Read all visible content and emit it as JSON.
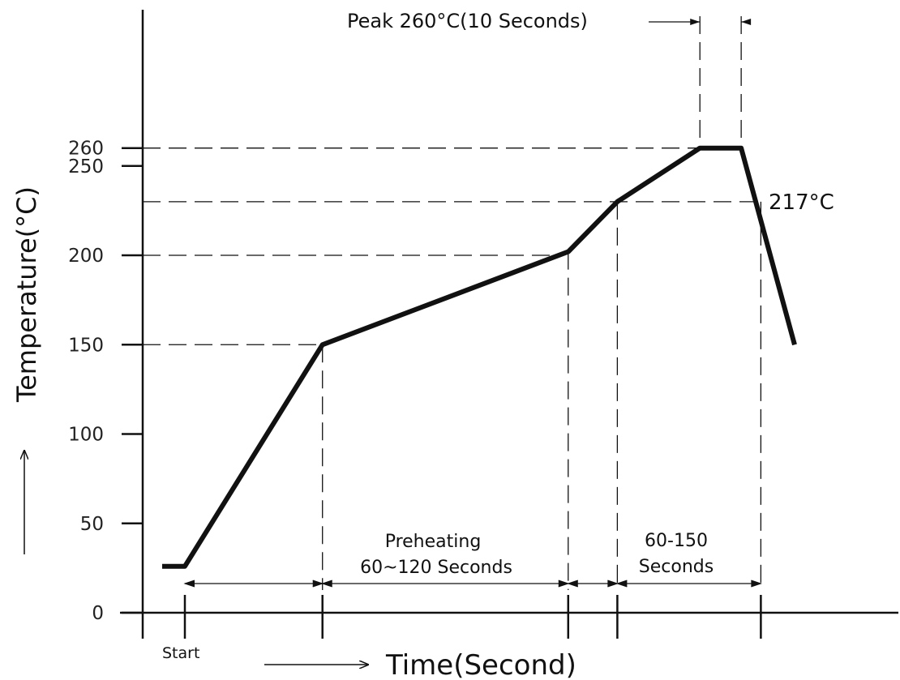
{
  "chart_data": {
    "type": "line",
    "title": "",
    "xlabel": "Time(Second)",
    "ylabel": "Temperature(°C)",
    "ylim": [
      0,
      270
    ],
    "yticks": [
      0,
      50,
      100,
      150,
      200,
      250,
      260
    ],
    "grid": false,
    "series": [
      {
        "name": "",
        "x": [
          0,
          20,
          90,
          215,
          240,
          282,
          303,
          330
        ],
        "y": [
          26,
          26,
          150,
          202,
          230,
          260,
          260,
          150
        ]
      }
    ],
    "reference_temperatures": [
      150,
      200,
      230,
      260
    ],
    "marker_times": [
      20,
      90,
      215,
      240,
      330
    ],
    "annotations": {
      "peak": "Peak 260°C(10 Seconds)",
      "liquidus": "217°C",
      "preheat_line1": "Preheating",
      "preheat_line2": "60~120 Seconds",
      "reflow_line1": "60-150",
      "reflow_line2": "Seconds",
      "start": "Start"
    }
  }
}
